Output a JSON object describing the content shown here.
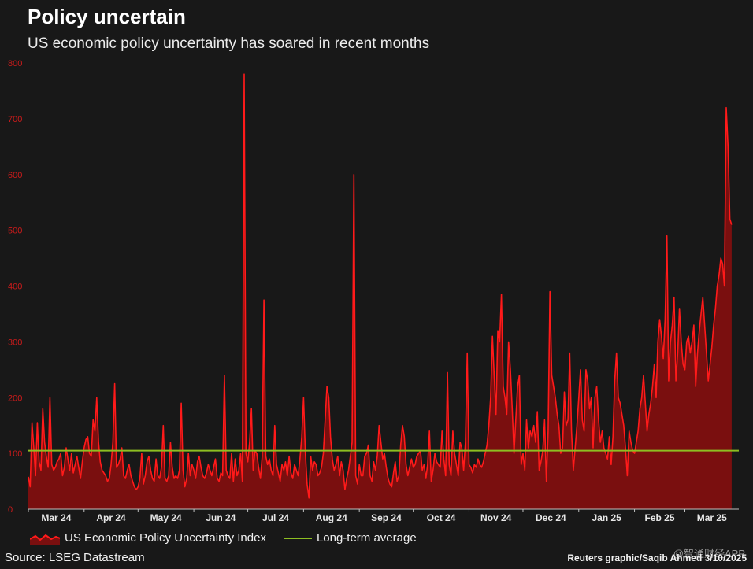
{
  "colors": {
    "series": "#ff1a1a",
    "fill": "#7a0f0f",
    "average": "#8dbe22",
    "axis_text": "#cc1b1b",
    "background": "#181818"
  },
  "header": {
    "title": "Policy uncertain",
    "subtitle": "US economic policy uncertainty has soared in recent months"
  },
  "footer": {
    "source": "Source: LSEG Datastream",
    "credit": "Reuters graphic/Saqib Ahmed 3/10/2025",
    "watermark": "@智通财经APP"
  },
  "chart_data": {
    "type": "area",
    "title": "Policy uncertain",
    "subtitle": "US economic policy uncertainty has soared in recent months",
    "xlabel": "",
    "ylabel": "",
    "ylim": [
      0,
      800
    ],
    "yticks": [
      0,
      100,
      200,
      300,
      400,
      500,
      600,
      700,
      800
    ],
    "x_start": "2024-03-01",
    "x_end": "2025-03-31",
    "x_ticks": [
      {
        "label": "Mar 24",
        "month_index": 0
      },
      {
        "label": "Apr 24",
        "month_index": 1
      },
      {
        "label": "May 24",
        "month_index": 2
      },
      {
        "label": "Jun 24",
        "month_index": 3
      },
      {
        "label": "Jul 24",
        "month_index": 4
      },
      {
        "label": "Aug 24",
        "month_index": 5
      },
      {
        "label": "Sep 24",
        "month_index": 6
      },
      {
        "label": "Oct 24",
        "month_index": 7
      },
      {
        "label": "Nov 24",
        "month_index": 8
      },
      {
        "label": "Dec 24",
        "month_index": 9
      },
      {
        "label": "Jan 25",
        "month_index": 10
      },
      {
        "label": "Feb 25",
        "month_index": 11
      },
      {
        "label": "Mar 25",
        "month_index": 12
      }
    ],
    "legend": [
      {
        "name": "US Economic Policy Uncertainty Index",
        "style": "area"
      },
      {
        "name": "Long-term average",
        "style": "line"
      }
    ],
    "series": [
      {
        "name": "US Economic Policy Uncertainty Index",
        "start_date": "2024-03-01",
        "interval_days": 1,
        "values": [
          58,
          40,
          155,
          110,
          60,
          155,
          85,
          70,
          180,
          120,
          95,
          75,
          200,
          80,
          70,
          75,
          85,
          90,
          100,
          60,
          75,
          110,
          90,
          70,
          100,
          65,
          80,
          95,
          75,
          55,
          85,
          110,
          125,
          130,
          100,
          95,
          160,
          140,
          200,
          120,
          85,
          70,
          65,
          60,
          50,
          55,
          80,
          120,
          225,
          75,
          80,
          90,
          110,
          60,
          55,
          70,
          80,
          60,
          50,
          40,
          35,
          40,
          55,
          100,
          45,
          60,
          85,
          95,
          70,
          55,
          50,
          90,
          60,
          55,
          75,
          150,
          55,
          50,
          60,
          120,
          75,
          55,
          60,
          55,
          70,
          190,
          70,
          40,
          55,
          100,
          60,
          80,
          70,
          55,
          85,
          95,
          75,
          60,
          55,
          65,
          80,
          70,
          60,
          75,
          90,
          55,
          50,
          65,
          60,
          240,
          70,
          60,
          55,
          100,
          50,
          90,
          60,
          70,
          100,
          50,
          780,
          100,
          85,
          120,
          180,
          70,
          105,
          100,
          75,
          55,
          95,
          375,
          95,
          80,
          90,
          70,
          60,
          150,
          80,
          65,
          50,
          80,
          70,
          85,
          60,
          95,
          65,
          55,
          80,
          70,
          60,
          90,
          130,
          200,
          100,
          45,
          20,
          95,
          70,
          85,
          80,
          60,
          65,
          75,
          100,
          160,
          220,
          200,
          130,
          90,
          70,
          80,
          95,
          60,
          85,
          70,
          35,
          55,
          70,
          95,
          120,
          600,
          60,
          45,
          80,
          60,
          60,
          95,
          100,
          115,
          60,
          50,
          85,
          70,
          95,
          150,
          120,
          90,
          100,
          75,
          55,
          45,
          40,
          65,
          85,
          50,
          60,
          115,
          150,
          130,
          80,
          60,
          75,
          90,
          75,
          80,
          95,
          100,
          105,
          70,
          80,
          55,
          80,
          140,
          50,
          70,
          100,
          85,
          80,
          75,
          140,
          90,
          60,
          245,
          80,
          60,
          140,
          100,
          80,
          60,
          120,
          110,
          70,
          120,
          280,
          80,
          75,
          65,
          80,
          75,
          90,
          80,
          75,
          85,
          100,
          115,
          150,
          200,
          310,
          240,
          170,
          320,
          300,
          385,
          220,
          200,
          170,
          300,
          250,
          180,
          100,
          160,
          220,
          240,
          80,
          100,
          70,
          160,
          110,
          140,
          130,
          150,
          120,
          175,
          70,
          85,
          105,
          160,
          50,
          140,
          390,
          240,
          220,
          200,
          170,
          150,
          100,
          110,
          210,
          150,
          160,
          280,
          140,
          70,
          110,
          150,
          200,
          250,
          160,
          140,
          250,
          230,
          180,
          200,
          110,
          200,
          220,
          160,
          120,
          140,
          110,
          100,
          90,
          130,
          80,
          130,
          230,
          280,
          200,
          190,
          170,
          150,
          110,
          60,
          140,
          120,
          105,
          100,
          120,
          140,
          180,
          200,
          240,
          190,
          140,
          170,
          190,
          220,
          260,
          200,
          300,
          340,
          310,
          270,
          340,
          490,
          230,
          300,
          330,
          380,
          230,
          280,
          360,
          300,
          260,
          250,
          300,
          310,
          280,
          300,
          330,
          220,
          280,
          320,
          350,
          380,
          330,
          280,
          230,
          260,
          290,
          330,
          360,
          400,
          420,
          450,
          440,
          400,
          720,
          650,
          520,
          510
        ]
      },
      {
        "name": "Long-term average",
        "value": 105
      }
    ]
  }
}
